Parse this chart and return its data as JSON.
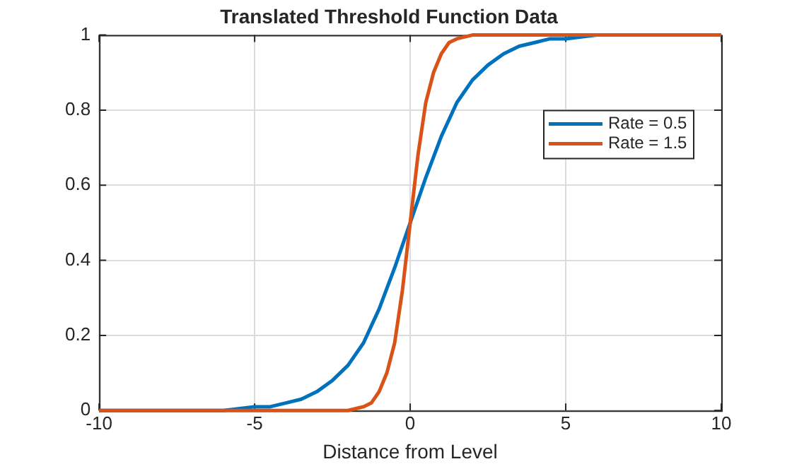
{
  "chart_data": {
    "type": "line",
    "title": "Translated Threshold Function Data",
    "xlabel": "Distance from Level",
    "xlim": [
      -10,
      10
    ],
    "xticks": [
      -10,
      -5,
      0,
      5,
      10
    ],
    "ylim": [
      0,
      1
    ],
    "yticks": [
      0,
      0.2,
      0.4,
      0.6,
      0.8,
      1
    ],
    "grid": true,
    "legend": "top right",
    "marker": "none",
    "line_style": "solid",
    "series": [
      {
        "name": "Rate = 0.5",
        "color": "#0072bd",
        "x": [
          -10,
          -8,
          -6,
          -5,
          -4.5,
          -4,
          -3.5,
          -3,
          -2.5,
          -2,
          -1.5,
          -1,
          -0.5,
          0,
          0.5,
          1,
          1.5,
          2,
          2.5,
          3,
          3.5,
          4,
          4.5,
          5,
          6,
          8,
          10
        ],
        "values": [
          0,
          0,
          0,
          0.01,
          0.01,
          0.02,
          0.03,
          0.05,
          0.08,
          0.12,
          0.18,
          0.27,
          0.38,
          0.5,
          0.62,
          0.73,
          0.82,
          0.88,
          0.92,
          0.95,
          0.97,
          0.98,
          0.99,
          0.99,
          1,
          1,
          1
        ]
      },
      {
        "name": "Rate = 1.5",
        "color": "#d95319",
        "x": [
          -10,
          -5,
          -3,
          -2,
          -1.5,
          -1.25,
          -1,
          -0.75,
          -0.5,
          -0.25,
          0,
          0.25,
          0.5,
          0.75,
          1,
          1.25,
          1.5,
          2,
          3,
          5,
          10
        ],
        "values": [
          0,
          0,
          0,
          0,
          0.01,
          0.02,
          0.05,
          0.1,
          0.18,
          0.32,
          0.5,
          0.68,
          0.82,
          0.9,
          0.95,
          0.98,
          0.99,
          1,
          1,
          1,
          1
        ]
      }
    ]
  }
}
